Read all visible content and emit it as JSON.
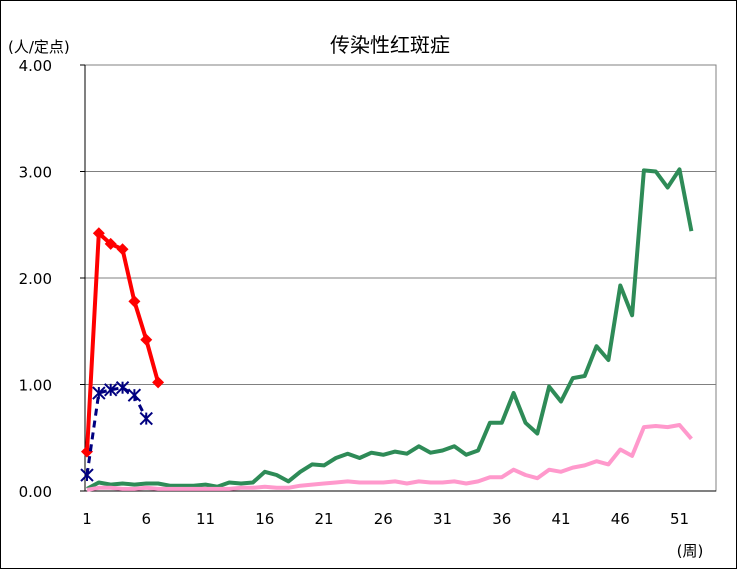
{
  "chart_data": {
    "type": "line",
    "title": "传染性红斑症",
    "ylabel": "(人/定点)",
    "xlabel": "(周)",
    "ylim": [
      0,
      4
    ],
    "xlim": [
      1,
      53
    ],
    "y_ticks": [
      "0.00",
      "1.00",
      "2.00",
      "3.00",
      "4.00"
    ],
    "x_ticks": [
      "1",
      "6",
      "11",
      "16",
      "21",
      "26",
      "31",
      "36",
      "41",
      "46",
      "51"
    ],
    "grid": "horizontal",
    "series": [
      {
        "color": "#2e8b57",
        "style": "solid",
        "marker": "none",
        "x": [
          1,
          2,
          3,
          4,
          5,
          6,
          7,
          8,
          9,
          10,
          11,
          12,
          13,
          14,
          15,
          16,
          17,
          18,
          19,
          20,
          21,
          22,
          23,
          24,
          25,
          26,
          27,
          28,
          29,
          30,
          31,
          32,
          33,
          34,
          35,
          36,
          37,
          38,
          39,
          40,
          41,
          42,
          43,
          44,
          45,
          46,
          47,
          48,
          49,
          50,
          51,
          52
        ],
        "values": [
          0.02,
          0.08,
          0.06,
          0.07,
          0.06,
          0.07,
          0.07,
          0.05,
          0.05,
          0.05,
          0.06,
          0.04,
          0.08,
          0.07,
          0.08,
          0.18,
          0.15,
          0.09,
          0.18,
          0.25,
          0.24,
          0.31,
          0.35,
          0.31,
          0.36,
          0.34,
          0.37,
          0.35,
          0.42,
          0.36,
          0.38,
          0.42,
          0.34,
          0.38,
          0.64,
          0.64,
          0.92,
          0.64,
          0.54,
          0.98,
          0.84,
          1.06,
          1.08,
          1.36,
          1.23,
          1.93,
          1.65,
          3.01,
          3.0,
          2.85,
          3.02,
          2.44
        ]
      },
      {
        "color": "#ff99cc",
        "style": "solid",
        "marker": "none",
        "x": [
          1,
          2,
          3,
          4,
          5,
          6,
          7,
          8,
          9,
          10,
          11,
          12,
          13,
          14,
          15,
          16,
          17,
          18,
          19,
          20,
          21,
          22,
          23,
          24,
          25,
          26,
          27,
          28,
          29,
          30,
          31,
          32,
          33,
          34,
          35,
          36,
          37,
          38,
          39,
          40,
          41,
          42,
          43,
          44,
          45,
          46,
          47,
          48,
          49,
          50,
          51,
          52
        ],
        "values": [
          0.01,
          0.03,
          0.03,
          0.02,
          0.02,
          0.03,
          0.02,
          0.02,
          0.02,
          0.02,
          0.02,
          0.02,
          0.02,
          0.03,
          0.03,
          0.04,
          0.03,
          0.03,
          0.05,
          0.06,
          0.07,
          0.08,
          0.09,
          0.08,
          0.08,
          0.08,
          0.09,
          0.07,
          0.09,
          0.08,
          0.08,
          0.09,
          0.07,
          0.09,
          0.13,
          0.13,
          0.2,
          0.15,
          0.12,
          0.2,
          0.18,
          0.22,
          0.24,
          0.28,
          0.25,
          0.39,
          0.33,
          0.6,
          0.61,
          0.6,
          0.62,
          0.49
        ]
      },
      {
        "color": "#ff0000",
        "style": "solid",
        "marker": "diamond",
        "x": [
          1,
          2,
          3,
          4,
          5,
          6,
          7
        ],
        "values": [
          0.37,
          2.42,
          2.32,
          2.27,
          1.78,
          1.42,
          1.02
        ]
      },
      {
        "color": "#000080",
        "style": "dashed",
        "marker": "asterisk",
        "x": [
          1,
          2,
          3,
          4,
          5,
          6
        ],
        "values": [
          0.15,
          0.92,
          0.95,
          0.97,
          0.9,
          0.68
        ]
      }
    ]
  }
}
